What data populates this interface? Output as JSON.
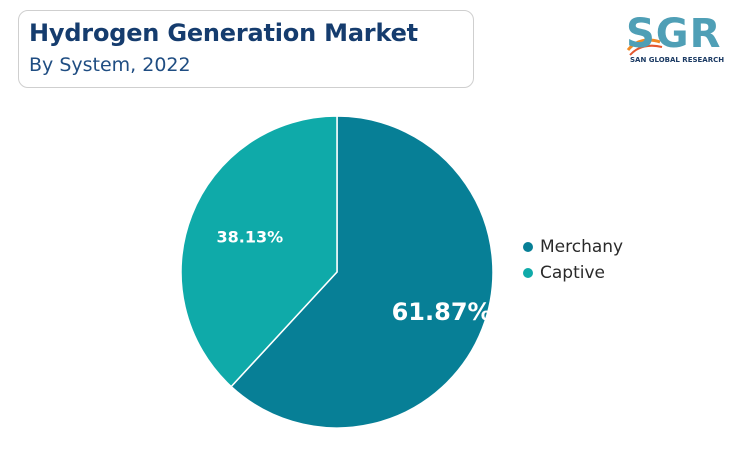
{
  "header": {
    "title": "Hydrogen Generation Market",
    "subtitle": "By System, 2022"
  },
  "logo": {
    "letters": "SGR",
    "tagline": "SAN GLOBAL RESEARCH",
    "color": "#4f9fb6"
  },
  "chart_data": {
    "type": "pie",
    "title": "Hydrogen Generation Market",
    "subtitle": "By System, 2022",
    "legend_position": "right",
    "slices": [
      {
        "name": "Merchany",
        "value": 61.87,
        "label": "61.87%",
        "color": "#077f96"
      },
      {
        "name": "Captive",
        "value": 38.13,
        "label": "38.13%",
        "color": "#0faaa9"
      }
    ]
  }
}
